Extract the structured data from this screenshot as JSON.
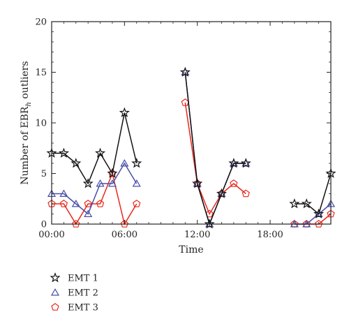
{
  "chart_data": {
    "type": "line",
    "xlabel": "Time",
    "ylabel_main": "Number of EBR",
    "ylabel_sub": "h",
    "ylabel_rest": " outliers",
    "ylim": [
      0,
      20
    ],
    "xlim": [
      0,
      23
    ],
    "y_ticks": [
      0,
      5,
      10,
      15,
      20
    ],
    "x_ticks": [
      {
        "value": 0,
        "label": "00:00"
      },
      {
        "value": 6,
        "label": "06:00"
      },
      {
        "value": 12,
        "label": "12:00"
      },
      {
        "value": 18,
        "label": "18:00"
      }
    ],
    "legend_position": "below",
    "series": [
      {
        "name": "EMT 1",
        "color": "#111111",
        "marker": "star",
        "segments": [
          [
            [
              0,
              7
            ],
            [
              1,
              7
            ],
            [
              2,
              6
            ],
            [
              3,
              4
            ],
            [
              4,
              7
            ],
            [
              5,
              5
            ],
            [
              6,
              11
            ],
            [
              7,
              6
            ]
          ],
          [
            [
              11,
              15
            ],
            [
              12,
              4
            ],
            [
              13,
              0
            ],
            [
              14,
              3
            ],
            [
              15,
              6
            ],
            [
              16,
              6
            ]
          ],
          [
            [
              20,
              2
            ],
            [
              21,
              2
            ],
            [
              22,
              1
            ],
            [
              23,
              5
            ]
          ]
        ]
      },
      {
        "name": "EMT 2",
        "color": "#4a4fa8",
        "marker": "triangle",
        "segments": [
          [
            [
              0,
              3
            ],
            [
              1,
              3
            ],
            [
              2,
              2
            ],
            [
              3,
              1
            ],
            [
              4,
              4
            ],
            [
              5,
              4
            ],
            [
              6,
              6
            ],
            [
              7,
              4
            ]
          ],
          [
            [
              11,
              15
            ],
            [
              12,
              4
            ],
            [
              13,
              0
            ],
            [
              14,
              3
            ],
            [
              15,
              6
            ],
            [
              16,
              6
            ]
          ],
          [
            [
              20,
              0
            ],
            [
              21,
              0
            ],
            [
              22,
              1
            ],
            [
              23,
              2
            ]
          ]
        ]
      },
      {
        "name": "EMT 3",
        "color": "#e8281c",
        "marker": "pentagon",
        "segments": [
          [
            [
              0,
              2
            ],
            [
              1,
              2
            ],
            [
              2,
              0
            ],
            [
              3,
              2
            ],
            [
              4,
              2
            ],
            [
              5,
              5
            ],
            [
              6,
              0
            ],
            [
              7,
              2
            ]
          ],
          [
            [
              11,
              12
            ],
            [
              12,
              4
            ],
            [
              13,
              1
            ],
            [
              14,
              3
            ],
            [
              15,
              4
            ],
            [
              16,
              3
            ]
          ],
          [
            [
              20,
              0
            ],
            [
              21,
              0
            ],
            [
              22,
              0
            ],
            [
              23,
              1
            ]
          ]
        ]
      }
    ]
  }
}
